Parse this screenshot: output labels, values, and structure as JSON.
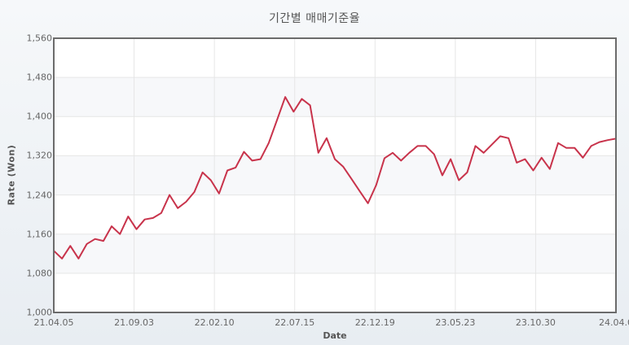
{
  "chart": {
    "title": "기간별 매매기준율",
    "xlabel": "Date",
    "ylabel": "Rate (Won)",
    "line_color": "#c8334b",
    "y_ticks": [
      "1,000",
      "1,080",
      "1,160",
      "1,240",
      "1,320",
      "1,400",
      "1,480",
      "1,560"
    ],
    "x_ticks": [
      "21.04.05",
      "21.09.03",
      "22.02.10",
      "22.07.15",
      "22.12.19",
      "23.05.23",
      "23.10.30",
      "24.04.0"
    ]
  },
  "chart_data": {
    "type": "line",
    "title": "기간별 매매기준율",
    "xlabel": "Date",
    "ylabel": "Rate (Won)",
    "ylim": [
      1000,
      1560
    ],
    "grid": true,
    "legend": "none",
    "x_tick_labels": [
      "21.04.05",
      "21.09.03",
      "22.02.10",
      "22.07.15",
      "22.12.19",
      "23.05.23",
      "23.10.30",
      "24.04.0"
    ],
    "y_tick_labels": [
      1000,
      1080,
      1160,
      1240,
      1320,
      1400,
      1480,
      1560
    ],
    "series": [
      {
        "name": "매매기준율",
        "x": [
          "21.04.05",
          "21.04.20",
          "21.05.10",
          "21.05.25",
          "21.06.15",
          "21.07.01",
          "21.07.20",
          "21.08.10",
          "21.08.20",
          "21.09.03",
          "21.09.20",
          "21.10.12",
          "21.11.01",
          "21.11.20",
          "21.12.10",
          "21.12.30",
          "22.01.10",
          "22.01.28",
          "22.02.10",
          "22.02.28",
          "22.03.15",
          "22.04.01",
          "22.04.20",
          "22.05.10",
          "22.05.25",
          "22.06.10",
          "22.06.25",
          "22.07.15",
          "22.07.25",
          "22.08.20",
          "22.09.05",
          "22.09.28",
          "22.10.13",
          "22.10.20",
          "22.11.01",
          "22.11.10",
          "22.11.15",
          "22.11.25",
          "22.12.05",
          "22.12.19",
          "23.01.01",
          "23.01.18",
          "23.02.02",
          "23.02.15",
          "23.03.01",
          "23.03.15",
          "23.04.01",
          "23.04.20",
          "23.05.10",
          "23.05.23",
          "23.06.15",
          "23.07.01",
          "23.07.20",
          "23.08.10",
          "23.08.25",
          "23.09.15",
          "23.10.05",
          "23.10.30",
          "23.11.15",
          "23.11.30",
          "23.12.15",
          "23.12.28",
          "24.01.15",
          "24.02.01",
          "24.02.20",
          "24.03.05",
          "24.03.15",
          "24.03.25",
          "24.04.0"
        ],
        "values": [
          1126,
          1110,
          1136,
          1110,
          1140,
          1150,
          1146,
          1176,
          1160,
          1196,
          1170,
          1190,
          1193,
          1203,
          1240,
          1213,
          1226,
          1246,
          1286,
          1270,
          1243,
          1290,
          1296,
          1328,
          1310,
          1313,
          1346,
          1393,
          1440,
          1410,
          1436,
          1423,
          1326,
          1356,
          1313,
          1298,
          1273,
          1248,
          1223,
          1260,
          1315,
          1326,
          1310,
          1326,
          1340,
          1340,
          1323,
          1280,
          1313,
          1270,
          1286,
          1340,
          1326,
          1343,
          1360,
          1356,
          1306,
          1313,
          1290,
          1316,
          1293,
          1346,
          1336,
          1336,
          1316,
          1340,
          1348,
          1352,
          1355
        ]
      }
    ]
  }
}
